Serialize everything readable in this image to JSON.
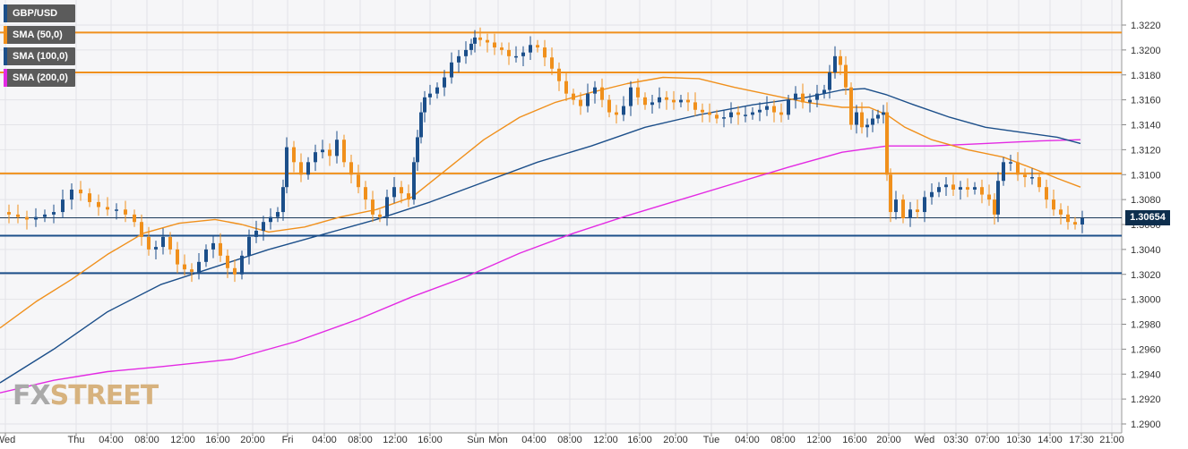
{
  "chart_data": {
    "type": "line",
    "symbol": "GBP/USD",
    "legend": [
      {
        "label": "GBP/USD",
        "color": "#1c4f8a"
      },
      {
        "label": "SMA (50,0)",
        "color": "#f0901c"
      },
      {
        "label": "SMA (100,0)",
        "color": "#1c4f8a"
      },
      {
        "label": "SMA (200,0)",
        "color": "#e32ae3"
      }
    ],
    "ylim": [
      1.289,
      1.324
    ],
    "y_ticks": [
      "1.3220",
      "1.3200",
      "1.3180",
      "1.3160",
      "1.3140",
      "1.3120",
      "1.3100",
      "1.3080",
      "1.3060",
      "1.3040",
      "1.3020",
      "1.3000",
      "1.2980",
      "1.2960",
      "1.2940",
      "1.2920",
      "1.2900"
    ],
    "x_ticks": [
      "Wed",
      "Thu",
      "04:00",
      "08:00",
      "12:00",
      "16:00",
      "20:00",
      "Fri",
      "04:00",
      "08:00",
      "12:00",
      "16:00",
      "Sun",
      "Mon",
      "04:00",
      "08:00",
      "12:00",
      "16:00",
      "20:00",
      "Tue",
      "04:00",
      "08:00",
      "12:00",
      "16:00",
      "20:00",
      "Wed",
      "03:30",
      "07:00",
      "10:30",
      "14:00",
      "17:30",
      "21:00"
    ],
    "last_price": "1.30654",
    "horizontal_levels": [
      {
        "value": 1.3214,
        "color": "#f0901c"
      },
      {
        "value": 1.3182,
        "color": "#f0901c"
      },
      {
        "value": 1.3101,
        "color": "#f0901c"
      },
      {
        "value": 1.3051,
        "color": "#1c4f8a"
      },
      {
        "value": 1.3021,
        "color": "#1c4f8a"
      }
    ],
    "price_path": [
      [
        0,
        1.307
      ],
      [
        10,
        1.3068
      ],
      [
        20,
        1.3066
      ],
      [
        30,
        1.3064
      ],
      [
        40,
        1.3066
      ],
      [
        50,
        1.3068
      ],
      [
        60,
        1.307
      ],
      [
        70,
        1.308
      ],
      [
        80,
        1.3088
      ],
      [
        90,
        1.3085
      ],
      [
        100,
        1.3078
      ],
      [
        110,
        1.3074
      ],
      [
        120,
        1.3072
      ],
      [
        130,
        1.3072
      ],
      [
        140,
        1.3068
      ],
      [
        150,
        1.3062
      ],
      [
        158,
        1.305
      ],
      [
        166,
        1.304
      ],
      [
        174,
        1.3042
      ],
      [
        182,
        1.305
      ],
      [
        190,
        1.304
      ],
      [
        198,
        1.3028
      ],
      [
        206,
        1.3024
      ],
      [
        214,
        1.3022
      ],
      [
        222,
        1.303
      ],
      [
        230,
        1.304
      ],
      [
        238,
        1.3045
      ],
      [
        246,
        1.3035
      ],
      [
        254,
        1.3025
      ],
      [
        262,
        1.302
      ],
      [
        270,
        1.3035
      ],
      [
        278,
        1.305
      ],
      [
        286,
        1.3055
      ],
      [
        294,
        1.3062
      ],
      [
        302,
        1.3066
      ],
      [
        310,
        1.307
      ],
      [
        316,
        1.309
      ],
      [
        320,
        1.3122
      ],
      [
        328,
        1.311
      ],
      [
        336,
        1.31
      ],
      [
        344,
        1.311
      ],
      [
        352,
        1.3118
      ],
      [
        360,
        1.312
      ],
      [
        368,
        1.3115
      ],
      [
        376,
        1.3128
      ],
      [
        384,
        1.311
      ],
      [
        392,
        1.31
      ],
      [
        400,
        1.309
      ],
      [
        408,
        1.308
      ],
      [
        416,
        1.3068
      ],
      [
        424,
        1.3066
      ],
      [
        432,
        1.3082
      ],
      [
        440,
        1.309
      ],
      [
        448,
        1.3085
      ],
      [
        456,
        1.308
      ],
      [
        462,
        1.311
      ],
      [
        466,
        1.313
      ],
      [
        470,
        1.315
      ],
      [
        474,
        1.3162
      ],
      [
        480,
        1.3165
      ],
      [
        488,
        1.317
      ],
      [
        496,
        1.3178
      ],
      [
        504,
        1.319
      ],
      [
        512,
        1.3195
      ],
      [
        520,
        1.32
      ],
      [
        526,
        1.3205
      ],
      [
        530,
        1.321
      ],
      [
        536,
        1.3208
      ],
      [
        544,
        1.3206
      ],
      [
        552,
        1.3202
      ],
      [
        560,
        1.32
      ],
      [
        568,
        1.3195
      ],
      [
        576,
        1.3195
      ],
      [
        584,
        1.3198
      ],
      [
        592,
        1.3204
      ],
      [
        600,
        1.3202
      ],
      [
        608,
        1.3194
      ],
      [
        616,
        1.3185
      ],
      [
        624,
        1.3175
      ],
      [
        632,
        1.3165
      ],
      [
        640,
        1.316
      ],
      [
        648,
        1.3155
      ],
      [
        656,
        1.3165
      ],
      [
        664,
        1.317
      ],
      [
        672,
        1.316
      ],
      [
        680,
        1.315
      ],
      [
        688,
        1.3148
      ],
      [
        696,
        1.3155
      ],
      [
        704,
        1.317
      ],
      [
        712,
        1.3162
      ],
      [
        720,
        1.3156
      ],
      [
        728,
        1.3158
      ],
      [
        736,
        1.3162
      ],
      [
        744,
        1.316
      ],
      [
        752,
        1.3158
      ],
      [
        760,
        1.316
      ],
      [
        768,
        1.3158
      ],
      [
        776,
        1.3152
      ],
      [
        784,
        1.315
      ],
      [
        792,
        1.3148
      ],
      [
        800,
        1.3145
      ],
      [
        808,
        1.3146
      ],
      [
        816,
        1.315
      ],
      [
        824,
        1.3148
      ],
      [
        832,
        1.3148
      ],
      [
        840,
        1.315
      ],
      [
        848,
        1.3152
      ],
      [
        856,
        1.3155
      ],
      [
        864,
        1.315
      ],
      [
        872,
        1.3148
      ],
      [
        880,
        1.316
      ],
      [
        888,
        1.3165
      ],
      [
        896,
        1.3158
      ],
      [
        904,
        1.316
      ],
      [
        912,
        1.3165
      ],
      [
        920,
        1.3168
      ],
      [
        926,
        1.3182
      ],
      [
        932,
        1.3195
      ],
      [
        938,
        1.3188
      ],
      [
        944,
        1.317
      ],
      [
        950,
        1.314
      ],
      [
        956,
        1.315
      ],
      [
        962,
        1.3138
      ],
      [
        968,
        1.314
      ],
      [
        974,
        1.3145
      ],
      [
        980,
        1.3148
      ],
      [
        986,
        1.315
      ],
      [
        990,
        1.31
      ],
      [
        994,
        1.307
      ],
      [
        1000,
        1.308
      ],
      [
        1008,
        1.3065
      ],
      [
        1016,
        1.3072
      ],
      [
        1024,
        1.307
      ],
      [
        1032,
        1.3082
      ],
      [
        1040,
        1.3086
      ],
      [
        1048,
        1.309
      ],
      [
        1056,
        1.3092
      ],
      [
        1064,
        1.3088
      ],
      [
        1072,
        1.309
      ],
      [
        1080,
        1.3088
      ],
      [
        1088,
        1.309
      ],
      [
        1096,
        1.3084
      ],
      [
        1104,
        1.308
      ],
      [
        1110,
        1.3068
      ],
      [
        1114,
        1.3095
      ],
      [
        1120,
        1.311
      ],
      [
        1128,
        1.311
      ],
      [
        1136,
        1.31
      ],
      [
        1144,
        1.3098
      ],
      [
        1152,
        1.3098
      ],
      [
        1160,
        1.309
      ],
      [
        1168,
        1.308
      ],
      [
        1176,
        1.3072
      ],
      [
        1184,
        1.3068
      ],
      [
        1192,
        1.3062
      ],
      [
        1200,
        1.306
      ],
      [
        1208,
        1.3065
      ]
    ],
    "sma50": [
      [
        0,
        1.2977
      ],
      [
        40,
        1.2998
      ],
      [
        80,
        1.3016
      ],
      [
        120,
        1.3036
      ],
      [
        160,
        1.3053
      ],
      [
        200,
        1.3061
      ],
      [
        240,
        1.3064
      ],
      [
        270,
        1.306
      ],
      [
        300,
        1.3054
      ],
      [
        340,
        1.3058
      ],
      [
        380,
        1.3066
      ],
      [
        420,
        1.3072
      ],
      [
        460,
        1.3082
      ],
      [
        500,
        1.3105
      ],
      [
        540,
        1.3128
      ],
      [
        580,
        1.3146
      ],
      [
        620,
        1.3158
      ],
      [
        660,
        1.3166
      ],
      [
        700,
        1.3173
      ],
      [
        740,
        1.3178
      ],
      [
        780,
        1.3177
      ],
      [
        820,
        1.317
      ],
      [
        860,
        1.3164
      ],
      [
        900,
        1.3158
      ],
      [
        940,
        1.3154
      ],
      [
        970,
        1.3154
      ],
      [
        990,
        1.3148
      ],
      [
        1010,
        1.3138
      ],
      [
        1040,
        1.3128
      ],
      [
        1080,
        1.312
      ],
      [
        1120,
        1.3114
      ],
      [
        1160,
        1.3103
      ],
      [
        1180,
        1.3097
      ],
      [
        1206,
        1.309
      ]
    ],
    "sma100": [
      [
        0,
        1.2933
      ],
      [
        60,
        1.296
      ],
      [
        120,
        1.299
      ],
      [
        180,
        1.3012
      ],
      [
        240,
        1.3026
      ],
      [
        300,
        1.304
      ],
      [
        360,
        1.3052
      ],
      [
        420,
        1.3064
      ],
      [
        480,
        1.3078
      ],
      [
        540,
        1.3094
      ],
      [
        600,
        1.311
      ],
      [
        660,
        1.3123
      ],
      [
        720,
        1.3138
      ],
      [
        780,
        1.3148
      ],
      [
        840,
        1.3156
      ],
      [
        900,
        1.3162
      ],
      [
        940,
        1.3168
      ],
      [
        965,
        1.3169
      ],
      [
        990,
        1.3164
      ],
      [
        1020,
        1.3156
      ],
      [
        1060,
        1.3146
      ],
      [
        1100,
        1.3138
      ],
      [
        1140,
        1.3134
      ],
      [
        1180,
        1.313
      ],
      [
        1206,
        1.3125
      ]
    ],
    "sma200": [
      [
        0,
        1.2925
      ],
      [
        60,
        1.2935
      ],
      [
        120,
        1.2942
      ],
      [
        180,
        1.2946
      ],
      [
        260,
        1.2952
      ],
      [
        330,
        1.2966
      ],
      [
        400,
        1.2984
      ],
      [
        460,
        1.3002
      ],
      [
        520,
        1.3018
      ],
      [
        580,
        1.3037
      ],
      [
        640,
        1.3053
      ],
      [
        700,
        1.3067
      ],
      [
        760,
        1.308
      ],
      [
        820,
        1.3093
      ],
      [
        880,
        1.3106
      ],
      [
        940,
        1.3118
      ],
      [
        990,
        1.3123
      ],
      [
        1040,
        1.3123
      ],
      [
        1100,
        1.3125
      ],
      [
        1160,
        1.3127
      ],
      [
        1206,
        1.3128
      ]
    ]
  }
}
